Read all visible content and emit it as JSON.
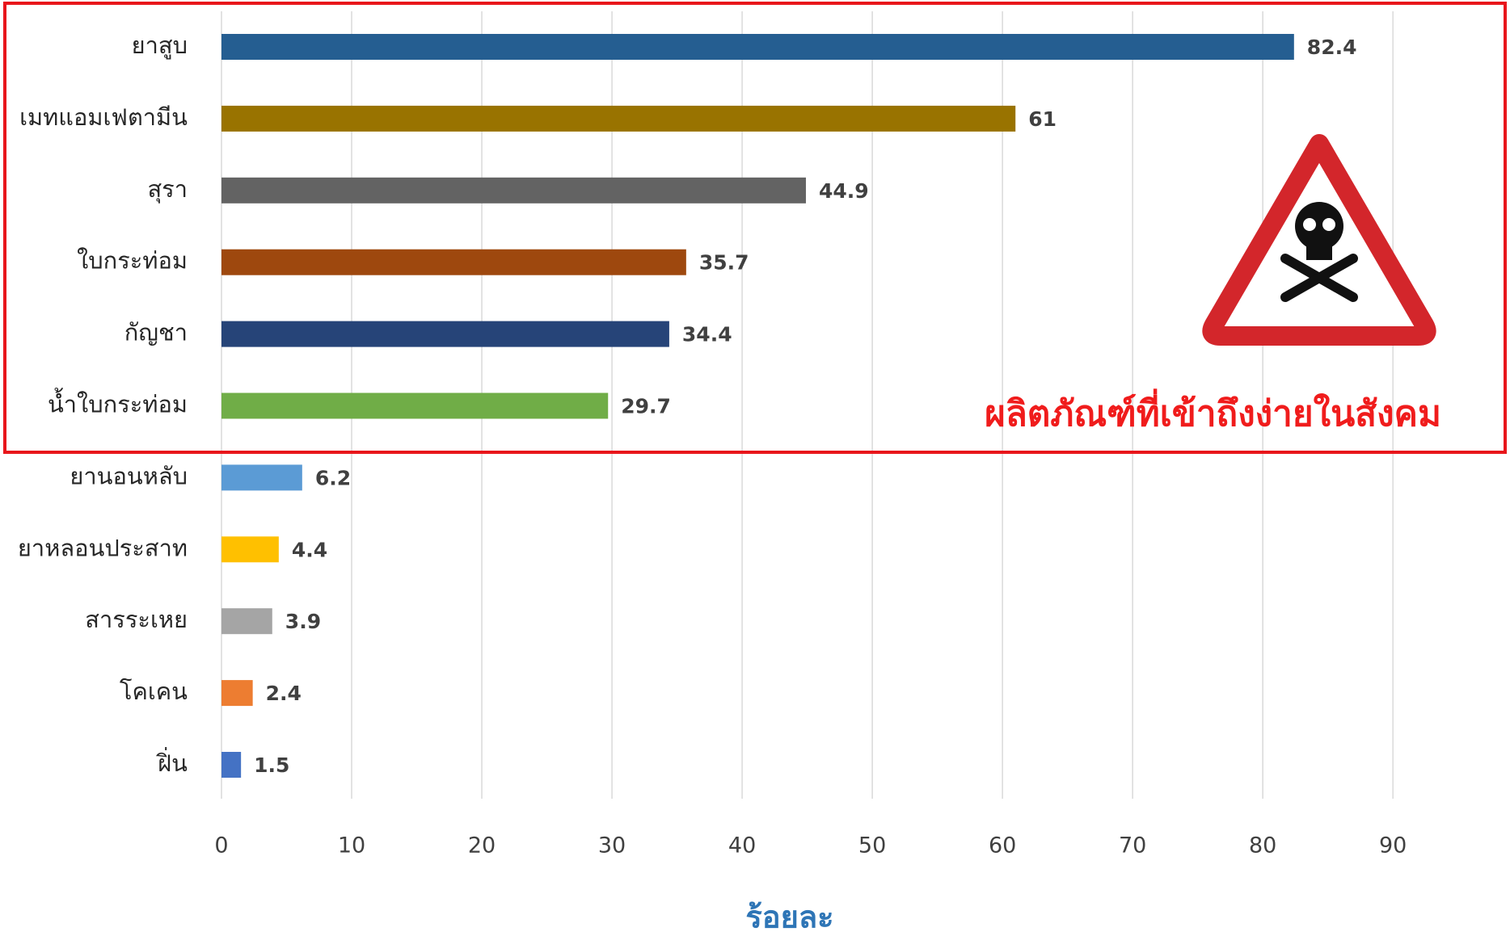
{
  "chart_data": {
    "type": "bar",
    "orientation": "horizontal",
    "categories": [
      "ยาสูบ",
      "เมทแอมเฟตามีน",
      "สุรา",
      "ใบกระท่อม",
      "กัญชา",
      "น้ำใบกระท่อม",
      "ยานอนหลับ",
      "ยาหลอนประสาท",
      "สารระเหย",
      "โคเคน",
      "ฝิ่น"
    ],
    "values": [
      82.4,
      61,
      44.9,
      35.7,
      34.4,
      29.7,
      6.2,
      4.4,
      3.9,
      2.4,
      1.5
    ],
    "colors": [
      "#255e91",
      "#997300",
      "#636363",
      "#9e480e",
      "#264478",
      "#70ad47",
      "#5b9bd5",
      "#ffc000",
      "#a5a5a5",
      "#ed7d31",
      "#4472c4"
    ],
    "xlim": [
      0,
      98
    ],
    "xticks": [
      0,
      10,
      20,
      30,
      40,
      50,
      60,
      70,
      80,
      90
    ],
    "xlabel": "ร้อยละ",
    "grid": true,
    "annotation": "ผลิตภัณฑ์ที่เข้าถึงง่ายในสังคม"
  }
}
